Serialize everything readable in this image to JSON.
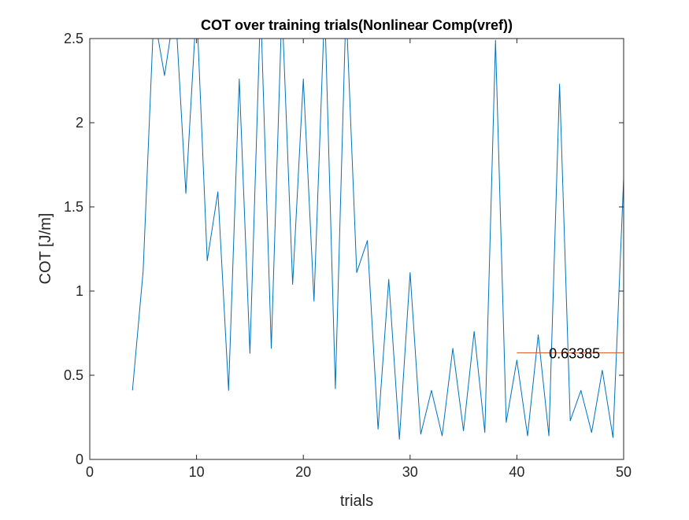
{
  "chart_data": {
    "type": "line",
    "title": "COT over training trials(Nonlinear Comp(vref))",
    "xlabel": "trials",
    "ylabel": "COT [J/m]",
    "xlim": [
      0,
      50
    ],
    "ylim": [
      0,
      2.5
    ],
    "xticks": [
      0,
      10,
      20,
      30,
      40,
      50
    ],
    "yticks": [
      0,
      0.5,
      1,
      1.5,
      2,
      2.5
    ],
    "xtick_labels": [
      "0",
      "10",
      "20",
      "30",
      "40",
      "50"
    ],
    "ytick_labels": [
      "0",
      "0.5",
      "1",
      "1.5",
      "2",
      "2.5"
    ],
    "grid": false,
    "series": [
      {
        "color": "#0072BD",
        "x": [
          4,
          5,
          6,
          7,
          8,
          9,
          10,
          11,
          12,
          13,
          14,
          15,
          16,
          17,
          18,
          19,
          20,
          21,
          22,
          23,
          24,
          25,
          26,
          27,
          28,
          29,
          30,
          31,
          32,
          33,
          34,
          35,
          36,
          37,
          38,
          39,
          40,
          41,
          42,
          43,
          44,
          45,
          46,
          47,
          48,
          49,
          50
        ],
        "y": [
          0.41,
          1.12,
          2.65,
          2.28,
          2.7,
          1.58,
          2.7,
          1.18,
          1.59,
          0.41,
          2.26,
          0.63,
          2.7,
          0.66,
          2.7,
          1.04,
          2.26,
          0.94,
          2.7,
          0.42,
          2.7,
          1.11,
          1.3,
          0.18,
          1.07,
          0.12,
          1.11,
          0.15,
          0.41,
          0.14,
          0.66,
          0.17,
          0.76,
          0.16,
          2.49,
          0.22,
          0.59,
          0.14,
          0.74,
          0.14,
          2.23,
          0.23,
          0.41,
          0.16,
          0.53,
          0.13,
          1.67
        ]
      },
      {
        "color": "#D95319",
        "x": [
          40,
          50
        ],
        "y": [
          0.63385,
          0.63385
        ]
      }
    ],
    "annotations": [
      {
        "text": "0.63385",
        "x": 43,
        "y": 0.63385
      }
    ]
  }
}
